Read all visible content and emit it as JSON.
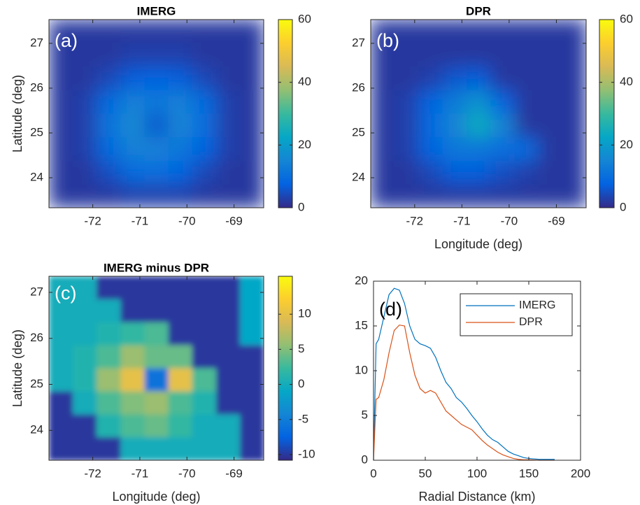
{
  "chart_data": [
    {
      "type": "heatmap",
      "title": "IMERG",
      "annotation": "(a)",
      "ylabel": "Latitude (deg)",
      "colormap": "parula",
      "xlim": [
        -72.93,
        -68.37
      ],
      "ylim": [
        23.33,
        27.53
      ],
      "xticks": [
        -72,
        -71,
        -70,
        -69
      ],
      "yticks": [
        24,
        25,
        26,
        27
      ],
      "zlim": [
        0,
        60
      ],
      "zticks": [
        0,
        20,
        40,
        60
      ],
      "values": [
        [
          2,
          2,
          2,
          2,
          2,
          2,
          2,
          2,
          2
        ],
        [
          2,
          2,
          2,
          3,
          3,
          3,
          2,
          2,
          2
        ],
        [
          2,
          2,
          4,
          7,
          8,
          7,
          4,
          2,
          2
        ],
        [
          2,
          3,
          9,
          14,
          12,
          14,
          9,
          3,
          2
        ],
        [
          2,
          3,
          11,
          16,
          6,
          15,
          10,
          3,
          2
        ],
        [
          2,
          3,
          9,
          14,
          14,
          12,
          8,
          3,
          2
        ],
        [
          2,
          2,
          5,
          9,
          10,
          8,
          4,
          2,
          2
        ],
        [
          2,
          2,
          2,
          3,
          3,
          3,
          2,
          2,
          2
        ]
      ]
    },
    {
      "type": "heatmap",
      "title": "DPR",
      "annotation": "(b)",
      "xlabel": "Longitude (deg)",
      "colormap": "parula",
      "xlim": [
        -72.93,
        -68.37
      ],
      "ylim": [
        23.33,
        27.53
      ],
      "xticks": [
        -72,
        -71,
        -70,
        -69
      ],
      "yticks": [
        24,
        25,
        26,
        27
      ],
      "zlim": [
        0,
        60
      ],
      "zticks": [
        0,
        20,
        40,
        60
      ],
      "values": [
        [
          2,
          2,
          2,
          2,
          2,
          2,
          2,
          2,
          2
        ],
        [
          2,
          2,
          2,
          2,
          2,
          2,
          2,
          2,
          2
        ],
        [
          2,
          2,
          3,
          6,
          7,
          2,
          2,
          2,
          2
        ],
        [
          2,
          3,
          8,
          13,
          18,
          8,
          2,
          2,
          2
        ],
        [
          2,
          3,
          9,
          15,
          24,
          15,
          2,
          2,
          2
        ],
        [
          2,
          3,
          8,
          12,
          12,
          10,
          9,
          2,
          2
        ],
        [
          2,
          2,
          4,
          7,
          7,
          5,
          3,
          2,
          2
        ],
        [
          2,
          2,
          2,
          2,
          2,
          2,
          2,
          2,
          2
        ]
      ]
    },
    {
      "type": "heatmap",
      "title": "IMERG minus DPR",
      "annotation": "(c)",
      "xlabel": "Longitude (deg)",
      "ylabel": "Latitude (deg)",
      "colormap": "parula",
      "xlim": [
        -72.93,
        -68.37
      ],
      "ylim": [
        23.35,
        27.35
      ],
      "xticks": [
        -72,
        -71,
        -70,
        -69
      ],
      "yticks": [
        24,
        25,
        26,
        27
      ],
      "zlim": [
        -10.8,
        15.4
      ],
      "zticks": [
        -10,
        -5,
        0,
        5,
        10
      ],
      "values": [
        [
          0,
          0,
          -10,
          -10,
          -10,
          -10,
          -10,
          -10,
          -1
        ],
        [
          0,
          0,
          0,
          -10,
          -10,
          -10,
          -10,
          -10,
          -1
        ],
        [
          0,
          0,
          1,
          2,
          3,
          -10,
          -10,
          -10,
          -1
        ],
        [
          0,
          1,
          3,
          6,
          4,
          4,
          -10,
          -10,
          -10
        ],
        [
          0,
          1,
          6,
          10,
          -6,
          10,
          3,
          -10,
          -10
        ],
        [
          -10,
          0,
          3,
          5,
          6,
          3,
          1,
          -10,
          -10
        ],
        [
          -10,
          -10,
          1,
          3,
          4,
          2,
          0,
          0,
          -10
        ],
        [
          -10,
          -10,
          -10,
          0,
          0,
          0,
          0,
          0,
          -10
        ]
      ]
    },
    {
      "type": "line",
      "annotation": "(d)",
      "xlabel": "Radial Distance (km)",
      "xlim": [
        0,
        200
      ],
      "ylim": [
        0,
        20
      ],
      "xticks": [
        0,
        50,
        100,
        150,
        200
      ],
      "yticks": [
        0,
        5,
        10,
        15,
        20
      ],
      "legend": "upper right",
      "x": [
        0,
        2.5,
        5,
        10,
        15,
        20,
        25,
        30,
        35,
        40,
        45,
        50,
        55,
        60,
        65,
        70,
        75,
        80,
        85,
        90,
        95,
        100,
        105,
        110,
        115,
        120,
        125,
        130,
        135,
        140,
        145,
        150,
        160,
        175
      ],
      "series": [
        {
          "name": "IMERG",
          "color": "#0072bd",
          "values": [
            0,
            13,
            13.5,
            16,
            18.5,
            19.2,
            19,
            17.5,
            15,
            13.5,
            13,
            12.8,
            12.5,
            11.5,
            10,
            8.7,
            8,
            7,
            6.5,
            5.8,
            5,
            4.3,
            3.5,
            2.8,
            2.3,
            2,
            1.5,
            1,
            0.7,
            0.5,
            0.3,
            0.2,
            0.1,
            0.1
          ]
        },
        {
          "name": "DPR",
          "color": "#d95319",
          "values": [
            0,
            6.8,
            7,
            9,
            12,
            14.5,
            15.1,
            15,
            12,
            9.5,
            8,
            7.5,
            7.8,
            7.5,
            6.5,
            5.5,
            5,
            4.5,
            4,
            3.7,
            3.4,
            2.8,
            2.2,
            1.7,
            1.3,
            0.9,
            0.6,
            0.4,
            0.2,
            0.1,
            0.05,
            0.05,
            0,
            0
          ]
        }
      ]
    }
  ]
}
